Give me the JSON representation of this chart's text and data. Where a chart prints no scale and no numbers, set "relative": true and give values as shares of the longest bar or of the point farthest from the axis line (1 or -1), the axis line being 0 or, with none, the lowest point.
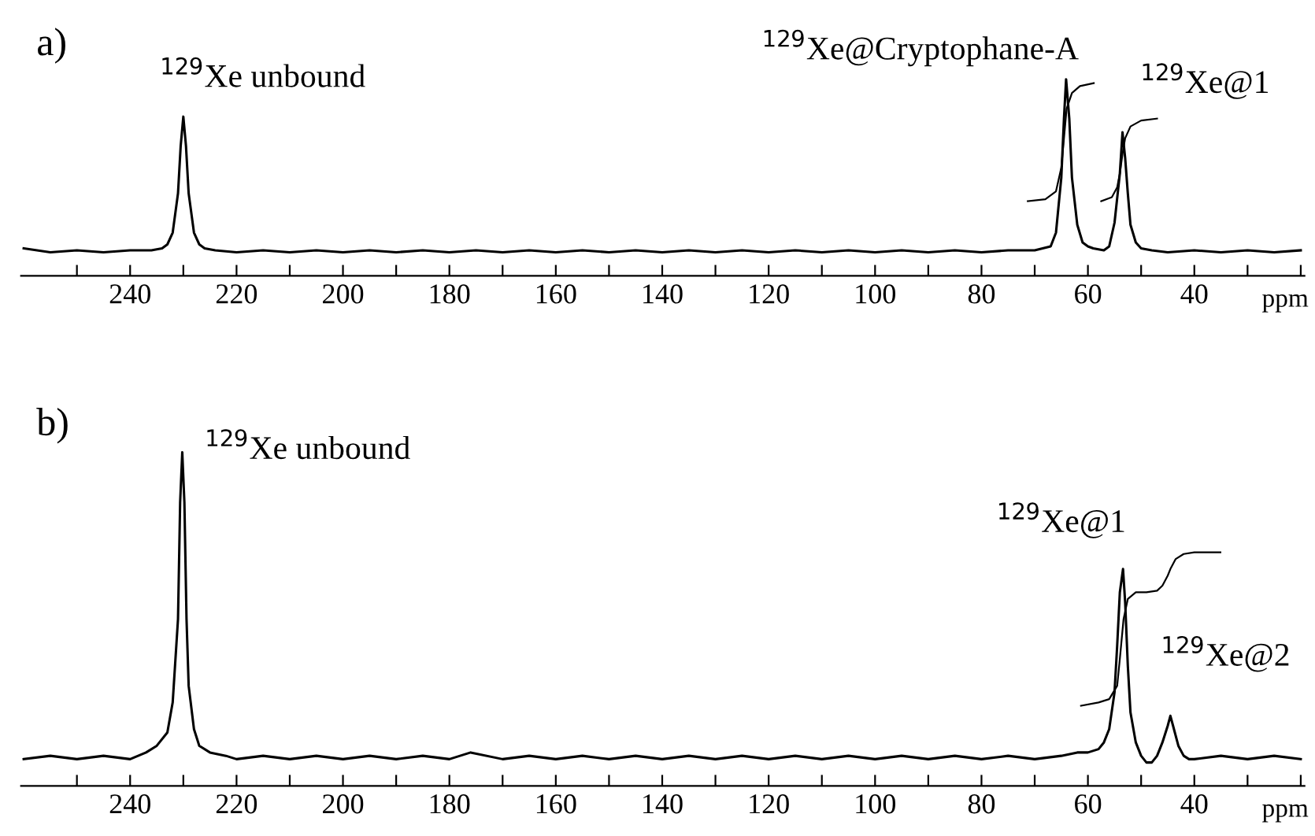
{
  "chart_data": [
    {
      "type": "line",
      "title": "a)",
      "xlabel": "ppm",
      "relative": true,
      "xlim": [
        260.5,
        19.3
      ],
      "xticks": [
        {
          "value": 250,
          "label": null
        },
        240,
        {
          "value": 230,
          "label": null
        },
        220,
        {
          "value": 210,
          "label": null
        },
        200,
        {
          "value": 190,
          "label": null
        },
        180,
        {
          "value": 170,
          "label": null
        },
        160,
        {
          "value": 150,
          "label": null
        },
        140,
        {
          "value": 130,
          "label": null
        },
        120,
        {
          "value": 110,
          "label": null
        },
        100,
        {
          "value": 90,
          "label": null
        },
        80,
        {
          "value": 70,
          "label": null
        },
        60,
        {
          "value": 50,
          "label": null
        },
        40,
        {
          "value": 30,
          "label": null
        },
        {
          "value": 20,
          "label": null
        }
      ],
      "grid": false,
      "legend": false,
      "marker": "none",
      "line_style": "solid",
      "series": [
        {
          "color": "#000000",
          "x": [
            260,
            255,
            250,
            245,
            240,
            236,
            234,
            233,
            232,
            231,
            230.5,
            230,
            229.5,
            229,
            228,
            227,
            226,
            224,
            220,
            215,
            210,
            205,
            200,
            195,
            190,
            185,
            180,
            175,
            170,
            165,
            160,
            155,
            150,
            145,
            140,
            135,
            130,
            125,
            120,
            115,
            110,
            105,
            100,
            95,
            90,
            85,
            80,
            75,
            70,
            67,
            66,
            65,
            64.5,
            64.1,
            63.5,
            63,
            62,
            61,
            60,
            59,
            57,
            56,
            55,
            54,
            53.5,
            53,
            52.5,
            52,
            51,
            50,
            48,
            45,
            40,
            35,
            30,
            25,
            20
          ],
          "values": [
            0.14,
            0.12,
            0.13,
            0.12,
            0.13,
            0.13,
            0.14,
            0.16,
            0.22,
            0.42,
            0.66,
            0.81,
            0.66,
            0.42,
            0.22,
            0.16,
            0.14,
            0.13,
            0.12,
            0.13,
            0.12,
            0.13,
            0.12,
            0.13,
            0.12,
            0.13,
            0.12,
            0.13,
            0.12,
            0.13,
            0.12,
            0.13,
            0.12,
            0.13,
            0.12,
            0.13,
            0.12,
            0.13,
            0.12,
            0.13,
            0.12,
            0.13,
            0.12,
            0.13,
            0.12,
            0.13,
            0.12,
            0.13,
            0.13,
            0.15,
            0.22,
            0.5,
            0.8,
            1.0,
            0.8,
            0.5,
            0.26,
            0.17,
            0.15,
            0.14,
            0.13,
            0.15,
            0.27,
            0.52,
            0.73,
            0.6,
            0.42,
            0.26,
            0.17,
            0.14,
            0.13,
            0.12,
            0.13,
            0.12,
            0.13,
            0.12,
            0.13
          ]
        },
        {
          "color": "#000000",
          "x": [
            71.3,
            68,
            66,
            65,
            64.5,
            64,
            63,
            61.5,
            58.9
          ],
          "values": [
            0.38,
            0.39,
            0.43,
            0.55,
            0.7,
            0.85,
            0.93,
            0.965,
            0.98
          ]
        },
        {
          "color": "#000000",
          "x": [
            57.5,
            55.5,
            54.5,
            54,
            53.5,
            53,
            52,
            50,
            47
          ],
          "values": [
            0.38,
            0.4,
            0.45,
            0.52,
            0.62,
            0.7,
            0.76,
            0.79,
            0.8
          ]
        }
      ],
      "annotations": [
        "$^{129}$Xe unbound",
        "$^{129}$Xe@Cryptophane-A",
        "$^{129}$Xe@1"
      ]
    },
    {
      "type": "line",
      "title": "b)",
      "xlabel": "ppm",
      "relative": true,
      "xlim": [
        260.5,
        19.3
      ],
      "xticks": [
        {
          "value": 250,
          "label": null
        },
        240,
        {
          "value": 230,
          "label": null
        },
        220,
        {
          "value": 210,
          "label": null
        },
        200,
        {
          "value": 190,
          "label": null
        },
        180,
        {
          "value": 170,
          "label": null
        },
        160,
        {
          "value": 150,
          "label": null
        },
        140,
        {
          "value": 130,
          "label": null
        },
        120,
        {
          "value": 110,
          "label": null
        },
        100,
        {
          "value": 90,
          "label": null
        },
        80,
        {
          "value": 70,
          "label": null
        },
        60,
        {
          "value": 50,
          "label": null
        },
        40,
        {
          "value": 30,
          "label": null
        },
        {
          "value": 20,
          "label": null
        }
      ],
      "grid": false,
      "legend": false,
      "marker": "none",
      "line_style": "solid",
      "series": [
        {
          "color": "#000000",
          "x": [
            260,
            255,
            250,
            245,
            240,
            237,
            235,
            233,
            232,
            231,
            230.6,
            230.2,
            229.8,
            229.4,
            229,
            228,
            227,
            225,
            222,
            220,
            215,
            210,
            205,
            200,
            195,
            190,
            185,
            180,
            176,
            170,
            165,
            160,
            155,
            150,
            145,
            140,
            135,
            130,
            125,
            120,
            115,
            110,
            105,
            100,
            95,
            90,
            85,
            80,
            75,
            70,
            65,
            62,
            60,
            58,
            57,
            56,
            55,
            54.5,
            54,
            53.4,
            53,
            52.5,
            52,
            51,
            50,
            49,
            48,
            47,
            46,
            45,
            44.5,
            44,
            43,
            42,
            41,
            40,
            35,
            30,
            25,
            20
          ],
          "values": [
            0.08,
            0.09,
            0.08,
            0.09,
            0.08,
            0.1,
            0.12,
            0.16,
            0.25,
            0.5,
            0.85,
            1.0,
            0.85,
            0.5,
            0.3,
            0.17,
            0.12,
            0.1,
            0.09,
            0.08,
            0.09,
            0.08,
            0.09,
            0.08,
            0.09,
            0.08,
            0.09,
            0.08,
            0.1,
            0.08,
            0.09,
            0.08,
            0.09,
            0.08,
            0.09,
            0.08,
            0.09,
            0.08,
            0.09,
            0.08,
            0.09,
            0.08,
            0.09,
            0.08,
            0.09,
            0.08,
            0.09,
            0.08,
            0.09,
            0.08,
            0.09,
            0.1,
            0.1,
            0.11,
            0.13,
            0.17,
            0.28,
            0.42,
            0.58,
            0.65,
            0.55,
            0.36,
            0.22,
            0.13,
            0.09,
            0.07,
            0.07,
            0.09,
            0.13,
            0.18,
            0.21,
            0.18,
            0.12,
            0.09,
            0.08,
            0.08,
            0.09,
            0.08,
            0.09,
            0.08
          ]
        },
        {
          "color": "#000000",
          "x": [
            61.3,
            58,
            56,
            54.5,
            54,
            53.3,
            52.5,
            51,
            49,
            47,
            46,
            45,
            44.5,
            43.5,
            42,
            40,
            37,
            35.1
          ],
          "values": [
            0.24,
            0.25,
            0.26,
            0.3,
            0.38,
            0.5,
            0.56,
            0.58,
            0.58,
            0.585,
            0.6,
            0.63,
            0.65,
            0.68,
            0.695,
            0.7,
            0.7,
            0.7
          ]
        }
      ],
      "annotations": [
        "$^{129}$Xe unbound",
        "$^{129}$Xe@1",
        "$^{129}$Xe@2"
      ]
    }
  ]
}
